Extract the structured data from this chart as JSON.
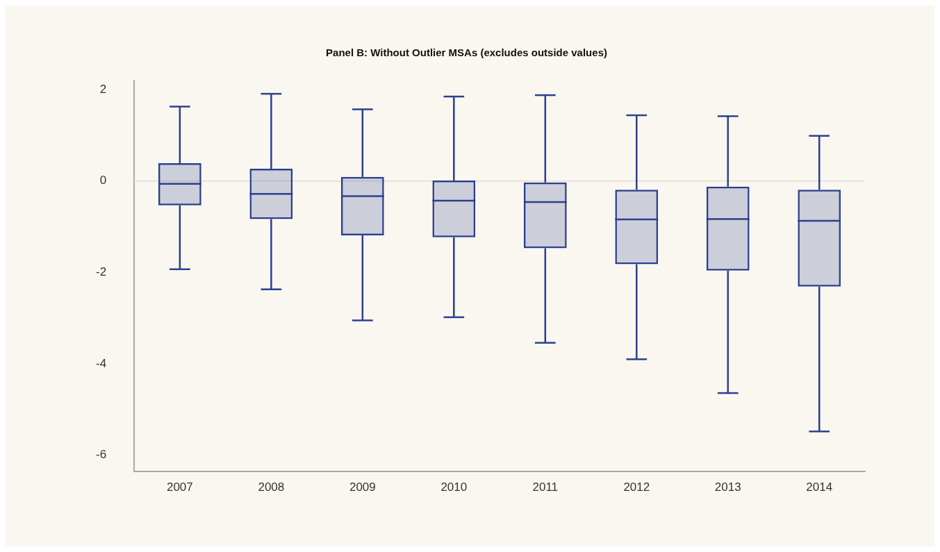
{
  "chart_data": {
    "type": "box",
    "title": "Panel B: Without Outlier MSAs (excludes outside values)",
    "categories": [
      "2007",
      "2008",
      "2009",
      "2010",
      "2011",
      "2012",
      "2013",
      "2014"
    ],
    "color": "#2b3f8f",
    "boxes": [
      {
        "low": -1.93,
        "q1": -0.53,
        "median": -0.06,
        "q3": 0.39,
        "high": 1.63
      },
      {
        "low": -2.37,
        "q1": -0.83,
        "median": -0.28,
        "q3": 0.27,
        "high": 1.91
      },
      {
        "low": -3.05,
        "q1": -1.19,
        "median": -0.33,
        "q3": 0.09,
        "high": 1.57
      },
      {
        "low": -2.98,
        "q1": -1.23,
        "median": -0.43,
        "q3": 0.01,
        "high": 1.85
      },
      {
        "low": -3.54,
        "q1": -1.47,
        "median": -0.46,
        "q3": -0.03,
        "high": 1.88
      },
      {
        "low": -3.9,
        "q1": -1.82,
        "median": -0.84,
        "q3": -0.19,
        "high": 1.44
      },
      {
        "low": -4.64,
        "q1": -1.96,
        "median": -0.83,
        "q3": -0.12,
        "high": 1.42
      },
      {
        "low": -5.48,
        "q1": -2.31,
        "median": -0.87,
        "q3": -0.19,
        "high": 0.99
      }
    ],
    "ylim": [
      -6.35,
      2.2
    ],
    "yticks": [
      -6,
      -4,
      -2,
      0,
      2
    ],
    "ref_lines": [
      {
        "axis": "y",
        "value": 0,
        "color": "#e6e2da"
      }
    ],
    "grid": false,
    "legend": false
  }
}
